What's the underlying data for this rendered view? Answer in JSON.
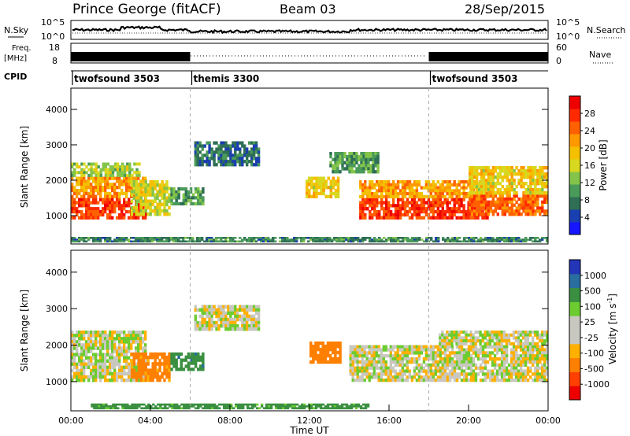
{
  "header": {
    "station": "Prince George (fitACF)",
    "beam": "Beam 03",
    "date": "28/Sep/2015"
  },
  "top_panels": {
    "nsky_label": "N.Sky",
    "nsky_tick_high": "10^5",
    "nsky_tick_low": "10^0",
    "nsearch_label": "N.Search",
    "freq_label_1": "Freq.",
    "freq_label_2": "[MHz]",
    "freq_tick_high": "18",
    "freq_tick_low": "8",
    "nave_tick_high": "60",
    "nave_tick_low": "0",
    "nave_label": "Nave",
    "cpid_label": "CPID"
  },
  "cpid_segments": [
    {
      "label": "twofsound 3503",
      "start_h": 0,
      "end_h": 6
    },
    {
      "label": "themis 3300",
      "start_h": 6,
      "end_h": 18
    },
    {
      "label": "twofsound 3503",
      "start_h": 18,
      "end_h": 24
    }
  ],
  "colors": {
    "power": [
      "#1515ff",
      "#1a3fb0",
      "#2e6f55",
      "#4a9a5a",
      "#84c44a",
      "#d8d820",
      "#f4c000",
      "#ff9900",
      "#ff6000",
      "#ff2a00",
      "#ee0000"
    ],
    "velocity": [
      "#2436b8",
      "#2a6ea0",
      "#3a9040",
      "#6ccc30",
      "#c8c8c0",
      "#c8c8c0",
      "#ffb000",
      "#ff8000",
      "#ff4000",
      "#ee0000"
    ]
  },
  "chart_data": [
    {
      "type": "heatmap",
      "name": "power",
      "ylabel": "Slant Range [km]",
      "yticks": [
        "1000",
        "2000",
        "3000",
        "4000"
      ],
      "ylim": [
        200,
        4600
      ],
      "xlim": [
        0,
        24
      ],
      "colorbar_label": "Power [dB]",
      "colorbar_ticks": [
        "4",
        "8",
        "12",
        "16",
        "20",
        "24",
        "28"
      ],
      "colorbar_range": [
        0,
        32
      ],
      "bands": [
        {
          "x0": 0.0,
          "x1": 3.8,
          "r0": 900,
          "r1": 1500,
          "level": 28
        },
        {
          "x0": 0.0,
          "x1": 3.8,
          "r0": 1500,
          "r1": 2100,
          "level": 22
        },
        {
          "x0": 0.0,
          "x1": 3.5,
          "r0": 2100,
          "r1": 2500,
          "level": 14
        },
        {
          "x0": 3.0,
          "x1": 5.0,
          "r0": 1000,
          "r1": 2000,
          "level": 16
        },
        {
          "x0": 5.0,
          "x1": 6.7,
          "r0": 1300,
          "r1": 1800,
          "level": 10
        },
        {
          "x0": 6.2,
          "x1": 9.5,
          "r0": 2400,
          "r1": 3100,
          "level": 6
        },
        {
          "x0": 11.8,
          "x1": 13.5,
          "r0": 1500,
          "r1": 2100,
          "level": 18
        },
        {
          "x0": 13.0,
          "x1": 15.5,
          "r0": 2200,
          "r1": 2800,
          "level": 10
        },
        {
          "x0": 14.5,
          "x1": 21.0,
          "r0": 900,
          "r1": 1500,
          "level": 28
        },
        {
          "x0": 14.5,
          "x1": 21.0,
          "r0": 1500,
          "r1": 2000,
          "level": 22
        },
        {
          "x0": 20.0,
          "x1": 24.0,
          "r0": 1000,
          "r1": 1600,
          "level": 26
        },
        {
          "x0": 20.0,
          "x1": 24.0,
          "r0": 1600,
          "r1": 2400,
          "level": 18
        },
        {
          "x0": 0.0,
          "x1": 24.0,
          "r0": 250,
          "r1": 400,
          "level": 8
        }
      ]
    },
    {
      "type": "heatmap",
      "name": "velocity",
      "ylabel": "Slant Range [km]",
      "xlabel": "Time UT",
      "xticks": [
        "00:00",
        "04:00",
        "08:00",
        "12:00",
        "16:00",
        "20:00",
        "00:00"
      ],
      "yticks": [
        "1000",
        "2000",
        "3000",
        "4000"
      ],
      "ylim": [
        200,
        4600
      ],
      "xlim": [
        0,
        24
      ],
      "colorbar_label": "Velocity [m s",
      "colorbar_label_sup": "-1",
      "colorbar_label_end": "]",
      "colorbar_ticks": [
        "1000",
        "500",
        "100",
        "25",
        "-25",
        "-100",
        "-500",
        "-1000"
      ],
      "bands": [
        {
          "x0": 0.0,
          "x1": 3.8,
          "r0": 1000,
          "r1": 2400,
          "level": 0
        },
        {
          "x0": 3.0,
          "x1": 5.0,
          "r0": 1000,
          "r1": 1800,
          "level": -150
        },
        {
          "x0": 5.0,
          "x1": 6.7,
          "r0": 1300,
          "r1": 1800,
          "level": 200
        },
        {
          "x0": 6.2,
          "x1": 9.5,
          "r0": 2400,
          "r1": 3100,
          "level": 0
        },
        {
          "x0": 12.0,
          "x1": 13.6,
          "r0": 1500,
          "r1": 2100,
          "level": -200
        },
        {
          "x0": 14.0,
          "x1": 24.0,
          "r0": 1000,
          "r1": 2000,
          "level": 0
        },
        {
          "x0": 18.5,
          "x1": 24.0,
          "r0": 2000,
          "r1": 2400,
          "level": 0
        },
        {
          "x0": 1.0,
          "x1": 15.0,
          "r0": 250,
          "r1": 400,
          "level": 150
        }
      ]
    }
  ]
}
